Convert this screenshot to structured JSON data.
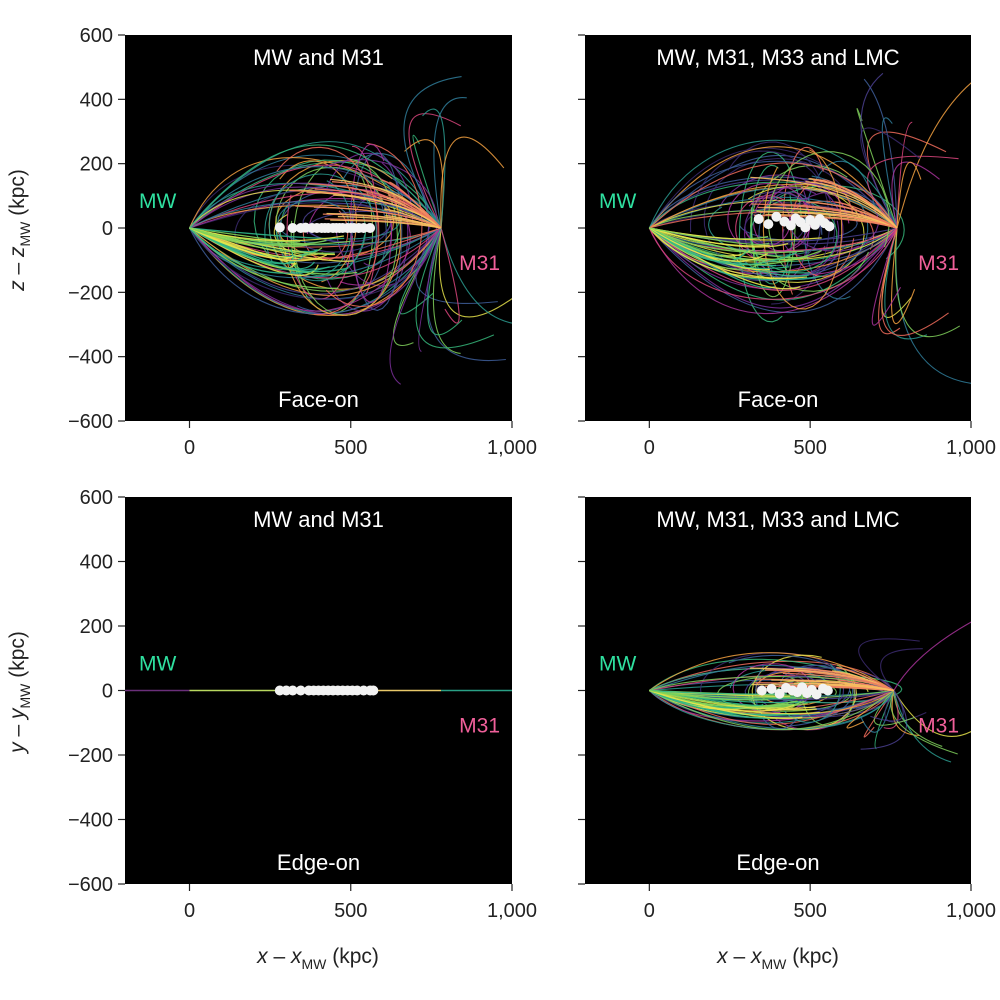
{
  "figure": {
    "x_label": {
      "var": "x",
      "minus": " – ",
      "sub_var": "x",
      "sub": "MW",
      "unit": " (kpc)"
    },
    "z_label": {
      "var": "z",
      "minus": " – ",
      "sub_var": "z",
      "sub": "MW",
      "unit": " (kpc)"
    },
    "y_label": {
      "var": "y",
      "minus": " – ",
      "sub_var": "y",
      "sub": "MW",
      "unit": " (kpc)"
    },
    "colors": {
      "mw": "#2fe0a0",
      "m31": "#f0609a",
      "points": "#f2f2f2",
      "background": "#000000"
    }
  },
  "chart_data": [
    {
      "type": "scatter",
      "title": "MW and M31",
      "view": "Face-on",
      "mw_label": "MW",
      "m31_label": "M31",
      "xlim": [
        -200,
        1000
      ],
      "ylim": [
        -600,
        600
      ],
      "x_ticks": [
        0,
        500,
        1000
      ],
      "x_tick_labels": [
        "0",
        "500",
        "1,000"
      ],
      "y_ticks": [
        600,
        400,
        200,
        0,
        -200,
        -400,
        -600
      ],
      "y_tick_labels": [
        "600",
        "400",
        "200",
        "0",
        "−200",
        "−400",
        "−600"
      ],
      "mw_position": [
        0,
        0
      ],
      "m31_position": [
        780,
        0
      ],
      "satellite_x": [
        280,
        320,
        345,
        360,
        380,
        395,
        410,
        420,
        430,
        445,
        455,
        465,
        475,
        490,
        500,
        510,
        525,
        540,
        560
      ],
      "satellite_y": [
        2,
        0,
        0,
        1,
        0,
        0,
        0,
        0,
        0,
        0,
        0,
        0,
        0,
        0,
        0,
        0,
        0,
        0,
        0
      ]
    },
    {
      "type": "scatter",
      "title": "MW, M31, M33 and LMC",
      "view": "Face-on",
      "mw_label": "MW",
      "m31_label": "M31",
      "xlim": [
        -200,
        1000
      ],
      "ylim": [
        -600,
        600
      ],
      "x_ticks": [
        0,
        500,
        1000
      ],
      "x_tick_labels": [
        "0",
        "500",
        "1,000"
      ],
      "y_ticks": [
        600,
        400,
        200,
        0,
        -200,
        -400,
        -600
      ],
      "y_tick_labels": [
        "600",
        "400",
        "200",
        "0",
        "−200",
        "−400",
        "−600"
      ],
      "mw_position": [
        0,
        0
      ],
      "m31_position": [
        770,
        0
      ],
      "satellite_x": [
        340,
        370,
        395,
        420,
        440,
        455,
        470,
        485,
        500,
        515,
        530,
        545,
        560
      ],
      "satellite_y": [
        28,
        12,
        35,
        20,
        8,
        30,
        18,
        2,
        25,
        10,
        28,
        15,
        5
      ]
    },
    {
      "type": "scatter",
      "title": "MW and M31",
      "view": "Edge-on",
      "mw_label": "MW",
      "m31_label": "M31",
      "xlim": [
        -200,
        1000
      ],
      "ylim": [
        -600,
        600
      ],
      "x_ticks": [
        0,
        500,
        1000
      ],
      "x_tick_labels": [
        "0",
        "500",
        "1,000"
      ],
      "y_ticks": [
        600,
        400,
        200,
        0,
        -200,
        -400,
        -600
      ],
      "y_tick_labels": [
        "600",
        "400",
        "200",
        "0",
        "−200",
        "−400",
        "−600"
      ],
      "mw_position": [
        0,
        0
      ],
      "m31_position": [
        780,
        0
      ],
      "satellite_x": [
        280,
        300,
        320,
        345,
        370,
        385,
        400,
        415,
        430,
        445,
        460,
        475,
        490,
        505,
        520,
        540,
        560,
        570
      ],
      "satellite_y": [
        0,
        0,
        0,
        0,
        0,
        0,
        0,
        0,
        0,
        0,
        0,
        0,
        0,
        0,
        0,
        0,
        0,
        0
      ]
    },
    {
      "type": "scatter",
      "title": "MW, M31, M33 and LMC",
      "view": "Edge-on",
      "mw_label": "MW",
      "m31_label": "M31",
      "xlim": [
        -200,
        1000
      ],
      "ylim": [
        -600,
        600
      ],
      "x_ticks": [
        0,
        500,
        1000
      ],
      "x_tick_labels": [
        "0",
        "500",
        "1,000"
      ],
      "y_ticks": [
        600,
        400,
        200,
        0,
        -200,
        -400,
        -600
      ],
      "y_tick_labels": [
        "600",
        "400",
        "200",
        "0",
        "−200",
        "−400",
        "−600"
      ],
      "mw_position": [
        0,
        0
      ],
      "m31_position": [
        760,
        0
      ],
      "satellite_x": [
        350,
        380,
        405,
        425,
        445,
        460,
        475,
        490,
        505,
        520,
        540,
        555
      ],
      "satellite_y": [
        0,
        5,
        -10,
        8,
        0,
        -5,
        10,
        -8,
        2,
        -12,
        6,
        0
      ]
    }
  ]
}
